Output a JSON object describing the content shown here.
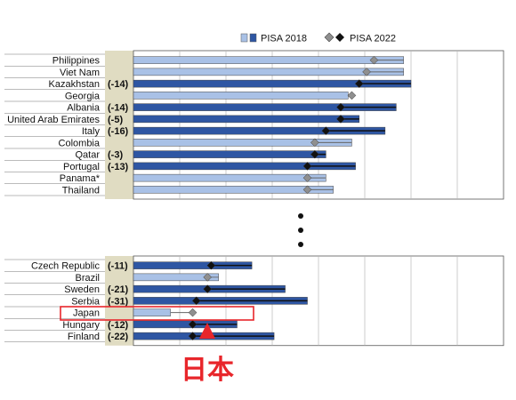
{
  "legend": {
    "pisa2018": "PISA 2018",
    "pisa2022": "PISA 2022"
  },
  "colors": {
    "bar_dark": "#2e56a3",
    "bar_light": "#a9c1e6",
    "marker_dark": "#111111",
    "marker_light": "#8f8f8f",
    "change_band": "#e0dcc2",
    "highlight": "#e8262b"
  },
  "annotation": {
    "text": "日本"
  },
  "chart_data": {
    "type": "bar",
    "orientation": "horizontal",
    "title": "",
    "xlabel": "",
    "ylabel": "",
    "xlim": [
      0,
      100
    ],
    "grid": true,
    "legend_position": "top-right",
    "series": [
      {
        "name": "PISA 2018",
        "kind": "bar"
      },
      {
        "name": "PISA 2022",
        "kind": "marker"
      }
    ],
    "groups": [
      {
        "rows": [
          {
            "country": "Philippines",
            "change": "",
            "pisa2018": 73,
            "pisa2022": 65,
            "significant": false
          },
          {
            "country": "Viet Nam",
            "change": "",
            "pisa2018": 73,
            "pisa2022": 63,
            "significant": false
          },
          {
            "country": "Kazakhstan",
            "change": "(-14)",
            "pisa2018": 75,
            "pisa2022": 61,
            "significant": true
          },
          {
            "country": "Georgia",
            "change": "",
            "pisa2018": 58,
            "pisa2022": 59,
            "significant": false
          },
          {
            "country": "Albania",
            "change": "(-14)",
            "pisa2018": 71,
            "pisa2022": 56,
            "significant": true
          },
          {
            "country": "United Arab Emirates",
            "change": "(-5)",
            "pisa2018": 61,
            "pisa2022": 56,
            "significant": true
          },
          {
            "country": "Italy",
            "change": "(-16)",
            "pisa2018": 68,
            "pisa2022": 52,
            "significant": true
          },
          {
            "country": "Colombia",
            "change": "",
            "pisa2018": 59,
            "pisa2022": 49,
            "significant": false
          },
          {
            "country": "Qatar",
            "change": "(-3)",
            "pisa2018": 52,
            "pisa2022": 49,
            "significant": true
          },
          {
            "country": "Portugal",
            "change": "(-13)",
            "pisa2018": 60,
            "pisa2022": 47,
            "significant": true
          },
          {
            "country": "Panama*",
            "change": "",
            "pisa2018": 52,
            "pisa2022": 47,
            "significant": false
          },
          {
            "country": "Thailand",
            "change": "",
            "pisa2018": 54,
            "pisa2022": 47,
            "significant": false
          }
        ]
      },
      {
        "rows": [
          {
            "country": "Czech Republic",
            "change": "(-11)",
            "pisa2018": 32,
            "pisa2022": 21,
            "significant": true
          },
          {
            "country": "Brazil",
            "change": "",
            "pisa2018": 23,
            "pisa2022": 20,
            "significant": false
          },
          {
            "country": "Sweden",
            "change": "(-21)",
            "pisa2018": 41,
            "pisa2022": 20,
            "significant": true
          },
          {
            "country": "Serbia",
            "change": "(-31)",
            "pisa2018": 47,
            "pisa2022": 17,
            "significant": true
          },
          {
            "country": "Japan",
            "change": "",
            "pisa2018": 10,
            "pisa2022": 16,
            "significant": false
          },
          {
            "country": "Hungary",
            "change": "(-12)",
            "pisa2018": 28,
            "pisa2022": 16,
            "significant": true
          },
          {
            "country": "Finland",
            "change": "(-22)",
            "pisa2018": 38,
            "pisa2022": 16,
            "significant": true
          }
        ]
      }
    ]
  }
}
